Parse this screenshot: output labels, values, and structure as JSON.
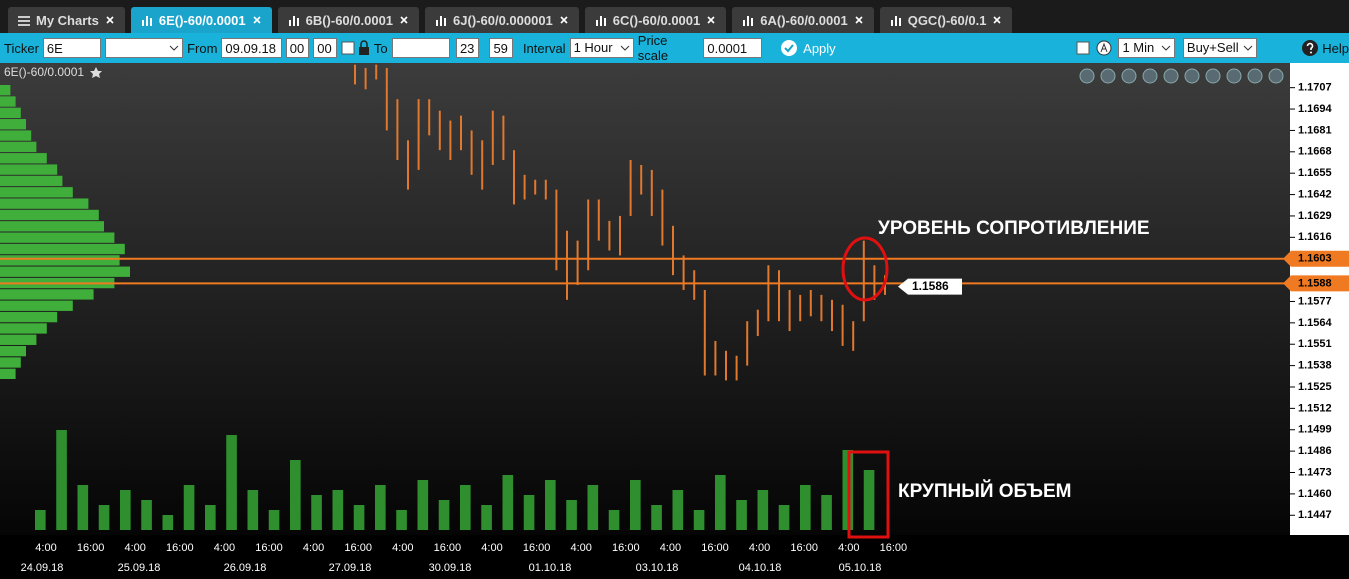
{
  "tabs": [
    "My Charts",
    "6E()-60/0.0001",
    "6B()-60/0.0001",
    "6J()-60/0.000001",
    "6C()-60/0.0001",
    "6A()-60/0.0001",
    "QGC()-60/0.1"
  ],
  "toolbar": {
    "ticker_label": "Ticker",
    "ticker": "6E",
    "from_label": "From",
    "from_date": "09.09.18",
    "from_hour": "00",
    "from_minute": "00",
    "to_label": "To",
    "to_hour": "23",
    "to_minute": "59",
    "interval_label": "Interval",
    "interval": "1 Hour",
    "price_scale_label": "Price scale",
    "price_scale": "0.0001",
    "apply": "Apply",
    "period": "1 Min",
    "side": "Buy+Sell",
    "help": "Help"
  },
  "chart_data": {
    "type": "range_bar",
    "title": "6E()-60/0.0001",
    "color": "#e0782e",
    "high": [
      1.1721,
      1.1719,
      1.1721,
      1.1719,
      1.17,
      1.1675,
      1.17,
      1.17,
      1.1693,
      1.1687,
      1.169,
      1.1681,
      1.1675,
      1.1693,
      1.169,
      1.1669,
      1.1654,
      1.1651,
      1.1651,
      1.1645,
      1.162,
      1.1614,
      1.1639,
      1.1639,
      1.1626,
      1.1629,
      1.1663,
      1.166,
      1.1657,
      1.1645,
      1.1623,
      1.1605,
      1.1596,
      1.1584,
      1.1553,
      1.1547,
      1.1544,
      1.1565,
      1.1572,
      1.1599,
      1.1596,
      1.1584,
      1.1581,
      1.1584,
      1.1581,
      1.1578,
      1.1575,
      1.1565,
      1.1614,
      1.1599,
      1.1593
    ],
    "low": [
      1.1709,
      1.1706,
      1.1712,
      1.1681,
      1.1663,
      1.1645,
      1.1657,
      1.1678,
      1.1669,
      1.1663,
      1.1669,
      1.1654,
      1.1645,
      1.166,
      1.1663,
      1.1636,
      1.1639,
      1.1642,
      1.1639,
      1.1596,
      1.1578,
      1.1587,
      1.1596,
      1.1614,
      1.1608,
      1.1605,
      1.1629,
      1.1642,
      1.1629,
      1.1611,
      1.1593,
      1.1584,
      1.1578,
      1.1532,
      1.1532,
      1.1529,
      1.1529,
      1.1538,
      1.1556,
      1.1565,
      1.1565,
      1.1559,
      1.1565,
      1.1568,
      1.1565,
      1.1559,
      1.155,
      1.1547,
      1.1565,
      1.1578,
      1.1581
    ],
    "ylim": [
      1.1435,
      1.1722
    ],
    "yticks": [
      1.1447,
      {
        "value": 1.146,
        "label": "1.1460"
      },
      1.1473,
      1.1486,
      1.1499,
      1.1512,
      1.1525,
      1.1538,
      1.1551,
      1.1564,
      1.1577,
      1.1616,
      1.1629,
      1.1642,
      1.1655,
      1.1668,
      1.1681,
      1.1694,
      1.1707
    ],
    "levels": [
      1.1603,
      1.1588
    ],
    "level_color": "#f07a22",
    "last_price": 1.1586,
    "annotations": [
      "УРОВЕНЬ СОПРОТИВЛЕНИЕ",
      "КРУПНЫЙ ОБЪЕМ"
    ],
    "time_labels": [
      "4:00",
      "16:00",
      "4:00",
      "16:00",
      "4:00",
      "16:00",
      "4:00",
      "16:00",
      "4:00",
      "16:00",
      "4:00",
      "16:00",
      "4:00",
      "16:00",
      "4:00",
      "16:00",
      "4:00",
      "16:00",
      "4:00",
      "16:00"
    ],
    "date_labels": [
      "24.09.18",
      "25.09.18",
      "26.09.18",
      "27.09.18",
      "30.09.18",
      "01.10.18",
      "03.10.18",
      "04.10.18",
      "05.10.18"
    ],
    "volume": {
      "color": "#2f8f2f",
      "values": [
        20,
        100,
        45,
        25,
        40,
        30,
        15,
        45,
        25,
        95,
        40,
        20,
        70,
        35,
        40,
        25,
        45,
        20,
        50,
        30,
        45,
        25,
        55,
        35,
        50,
        30,
        45,
        20,
        50,
        25,
        40,
        20,
        55,
        30,
        40,
        25,
        45,
        35,
        80,
        60
      ]
    },
    "volume_profile": {
      "color": "#3fae3a",
      "values": [
        10,
        15,
        20,
        25,
        30,
        35,
        45,
        55,
        60,
        70,
        85,
        95,
        100,
        110,
        120,
        115,
        125,
        110,
        90,
        70,
        55,
        45,
        35,
        25,
        20,
        15
      ]
    }
  }
}
